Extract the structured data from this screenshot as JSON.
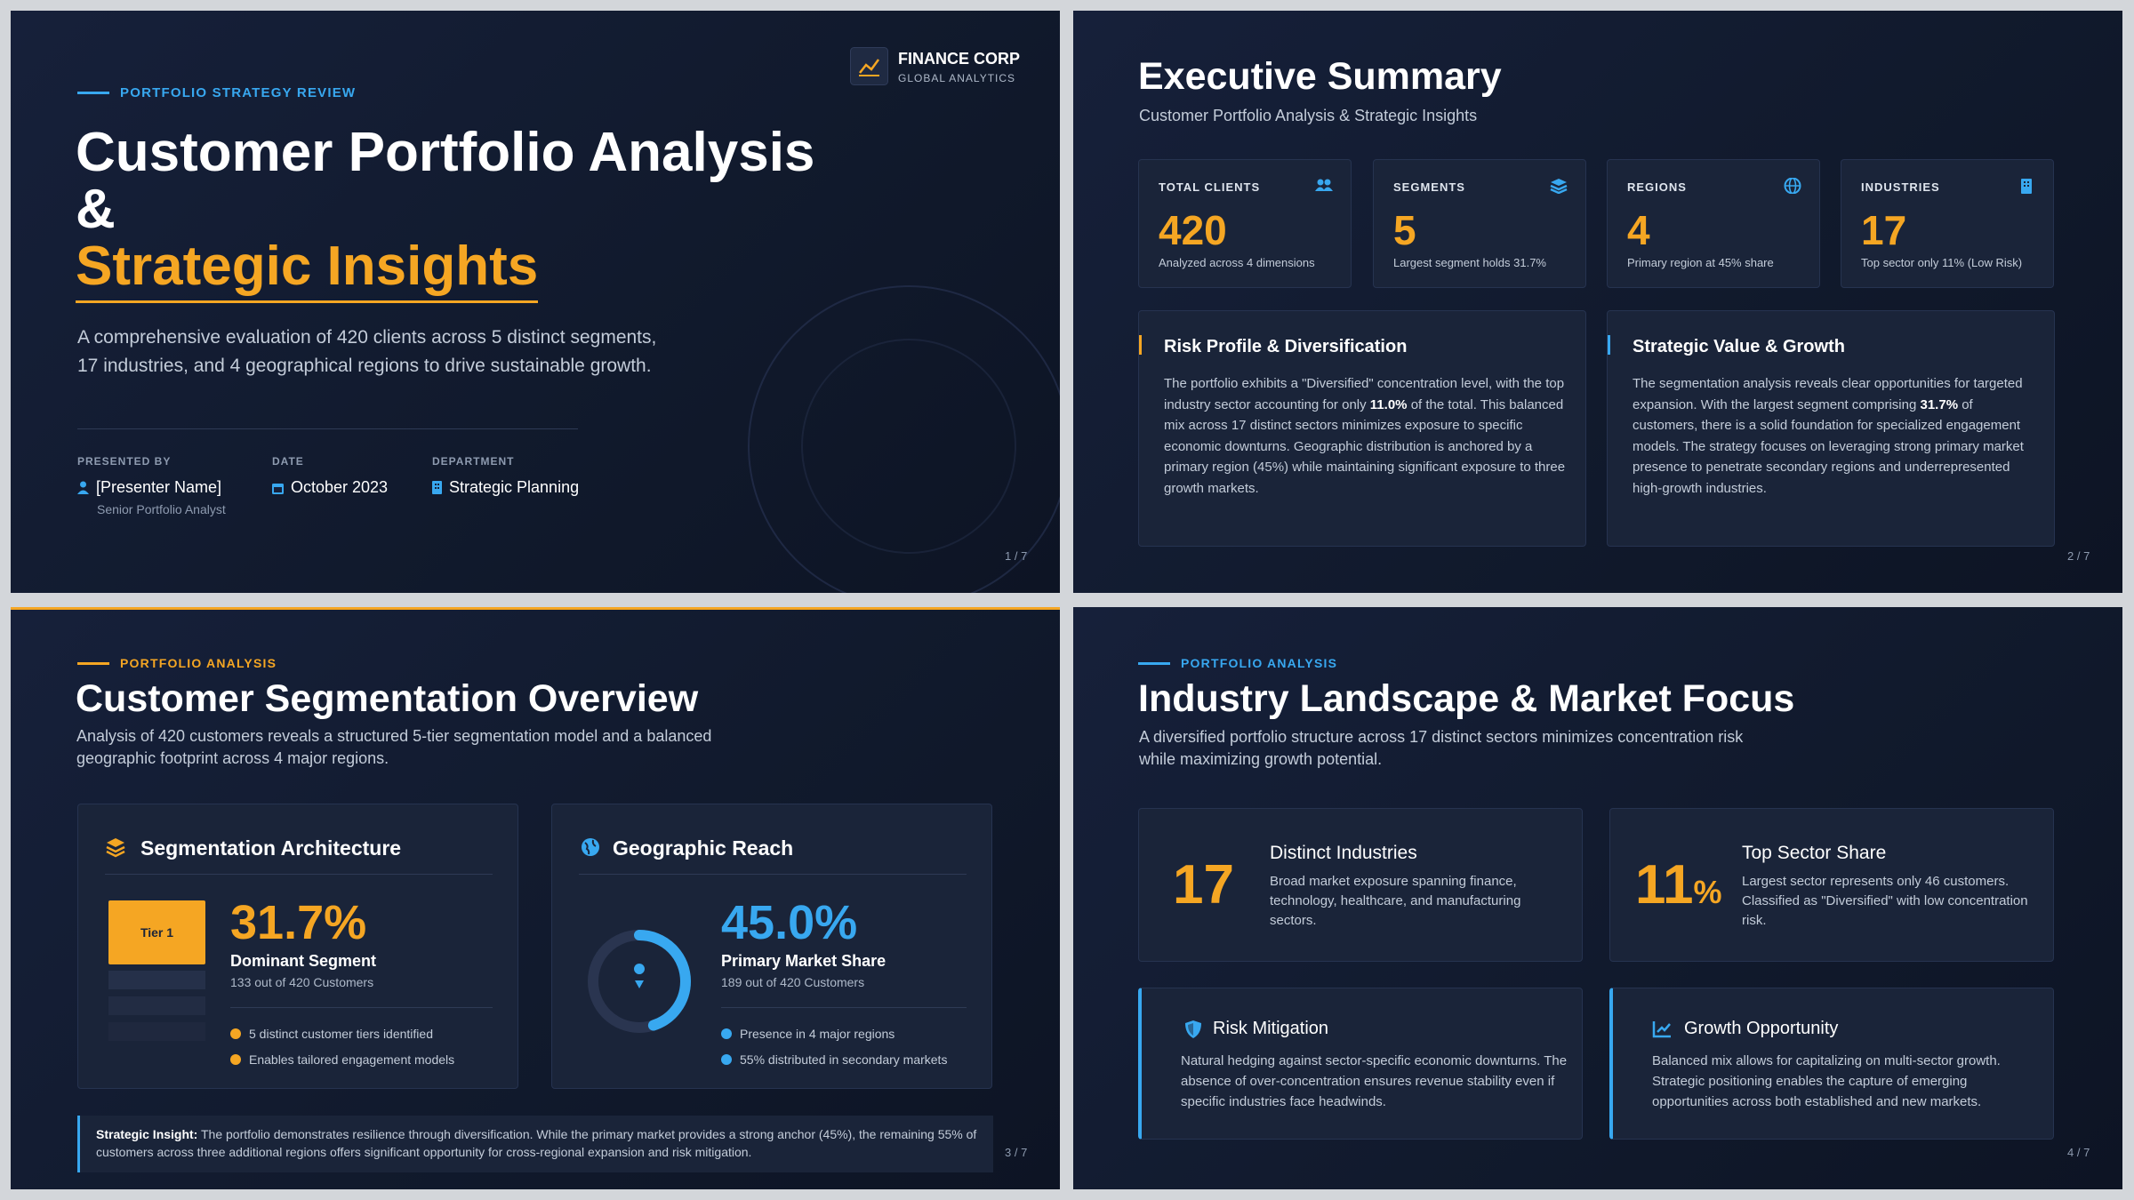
{
  "title_slide": {
    "kicker": "PORTFOLIO STRATEGY REVIEW",
    "brand": {
      "name": "FINANCE CORP",
      "tagline": "GLOBAL ANALYTICS"
    },
    "title": {
      "line1": "Customer Portfolio Analysis",
      "line2": "&",
      "line3": "Strategic Insights"
    },
    "description": "A comprehensive evaluation of 420 clients across 5 distinct segments, 17 industries, and 4 geographical regions to drive sustainable growth.",
    "meta": [
      {
        "label": "PRESENTED BY",
        "value": "[Presenter Name]",
        "note": "Senior Portfolio Analyst"
      },
      {
        "label": "DATE",
        "value": "October 2023"
      },
      {
        "label": "DEPARTMENT",
        "value": "Strategic Planning"
      }
    ],
    "page": "1 / 7"
  },
  "executive_summary": {
    "title": "Executive Summary",
    "subtitle": "Customer Portfolio Analysis & Strategic Insights",
    "stats": [
      {
        "label": "TOTAL CLIENTS",
        "value": "420",
        "note": "Analyzed across 4 dimensions"
      },
      {
        "label": "SEGMENTS",
        "value": "5",
        "note": "Largest segment holds 31.7%"
      },
      {
        "label": "REGIONS",
        "value": "4",
        "note": "Primary region at 45% share"
      },
      {
        "label": "INDUSTRIES",
        "value": "17",
        "note": "Top sector only 11% (Low Risk)"
      }
    ],
    "cards": [
      {
        "title": "Risk Profile & Diversification",
        "body": [
          "The portfolio exhibits a \"Diversified\" concentration level, with the top industry sector accounting for only",
          "11.0%",
          "of the total. This balanced mix across 17 distinct sectors minimizes exposure to specific economic downturns. Geographic distribution is anchored by a primary region (45%) while maintaining significant exposure to three growth markets."
        ]
      },
      {
        "title": "Strategic Value & Growth",
        "body": [
          "The segmentation analysis reveals clear opportunities for targeted expansion. With the largest segment comprising",
          "31.7%",
          "of customers, there is a solid foundation for specialized engagement models. The strategy focuses on leveraging strong primary market presence to penetrate secondary regions and underrepresented high-growth industries."
        ]
      }
    ],
    "page": "2 / 7"
  },
  "segmentation": {
    "kicker": "PORTFOLIO ANALYSIS",
    "title": "Customer Segmentation Overview",
    "description": "Analysis of 420 customers reveals a structured 5-tier segmentation model and a balanced geographic footprint across 4 major regions.",
    "architecture": {
      "title": "Segmentation Architecture",
      "tier": "Tier 1",
      "metric": "31.7%",
      "metric_label": "Dominant Segment",
      "metric_note": "133 out of 420 Customers",
      "bullets": [
        "5 distinct customer tiers identified",
        "Enables tailored engagement models"
      ]
    },
    "geo": {
      "title": "Geographic Reach",
      "share": {
        "value": 45.0,
        "label": "45.0%"
      },
      "metric_label": "Primary Market Share",
      "metric_note": "189 out of 420 Customers",
      "bullets": [
        "Presence in 4 major regions",
        "55% distributed in secondary markets"
      ]
    },
    "insight": {
      "label": "Strategic Insight:",
      "text": "The portfolio demonstrates resilience through diversification. While the primary market provides a strong anchor (45%), the remaining 55% of customers across three additional regions offers significant opportunity for cross-regional expansion and risk mitigation."
    },
    "page": "3 / 7"
  },
  "industry": {
    "kicker": "PORTFOLIO ANALYSIS",
    "title": "Industry Landscape & Market Focus",
    "description": "A diversified portfolio structure across 17 distinct sectors minimizes concentration risk while maximizing growth potential.",
    "highlights": [
      {
        "number": "17",
        "title": "Distinct Industries",
        "body": "Broad market exposure spanning finance, technology, healthcare, and manufacturing sectors."
      },
      {
        "number": "11",
        "unit": "%",
        "title": "Top Sector Share",
        "body": "Largest sector represents only 46 customers. Classified as \"Diversified\" with low concentration risk."
      }
    ],
    "notes": [
      {
        "title": "Risk Mitigation",
        "body": "Natural hedging against sector-specific economic downturns. The absence of over-concentration ensures revenue stability even if specific industries face headwinds."
      },
      {
        "title": "Growth Opportunity",
        "body": "Balanced mix allows for capitalizing on multi-sector growth. Strategic positioning enables the capture of emerging opportunities across both established and new markets."
      }
    ],
    "page": "4 / 7"
  }
}
